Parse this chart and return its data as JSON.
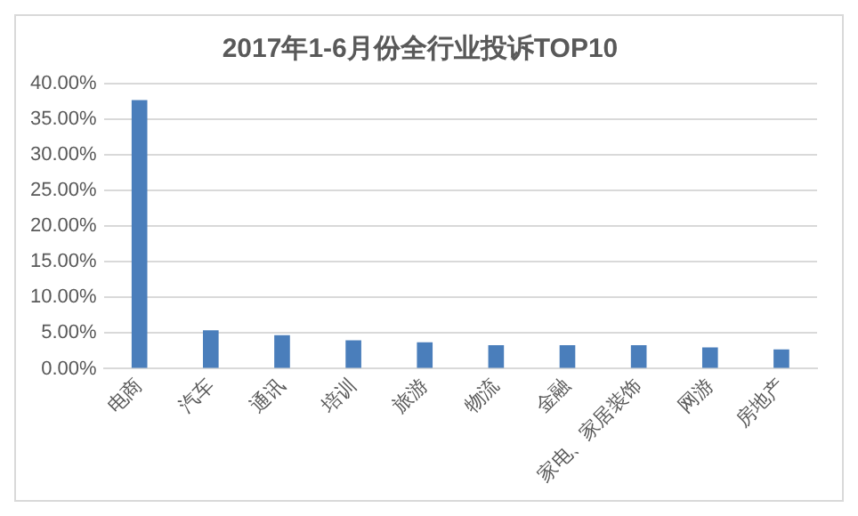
{
  "chart_data": {
    "type": "bar",
    "title": "2017年1-6月份全行业投诉TOP10",
    "categories": [
      "电商",
      "汽车",
      "通讯",
      "培训",
      "旅游",
      "物流",
      "金融",
      "家电、家居装饰",
      "网游",
      "房地产"
    ],
    "values": [
      37.7,
      5.4,
      4.7,
      4.0,
      3.7,
      3.3,
      3.3,
      3.3,
      3.0,
      2.7
    ],
    "color": "#4a7ebb",
    "ylim": [
      0,
      40
    ],
    "yticks": [
      {
        "value": 0,
        "label": "0.00%"
      },
      {
        "value": 5,
        "label": "5.00%"
      },
      {
        "value": 10,
        "label": "10.00%"
      },
      {
        "value": 15,
        "label": "15.00%"
      },
      {
        "value": 20,
        "label": "20.00%"
      },
      {
        "value": 25,
        "label": "25.00%"
      },
      {
        "value": 30,
        "label": "30.00%"
      },
      {
        "value": 35,
        "label": "35.00%"
      },
      {
        "value": 40,
        "label": "40.00%"
      }
    ],
    "grid": "y"
  }
}
